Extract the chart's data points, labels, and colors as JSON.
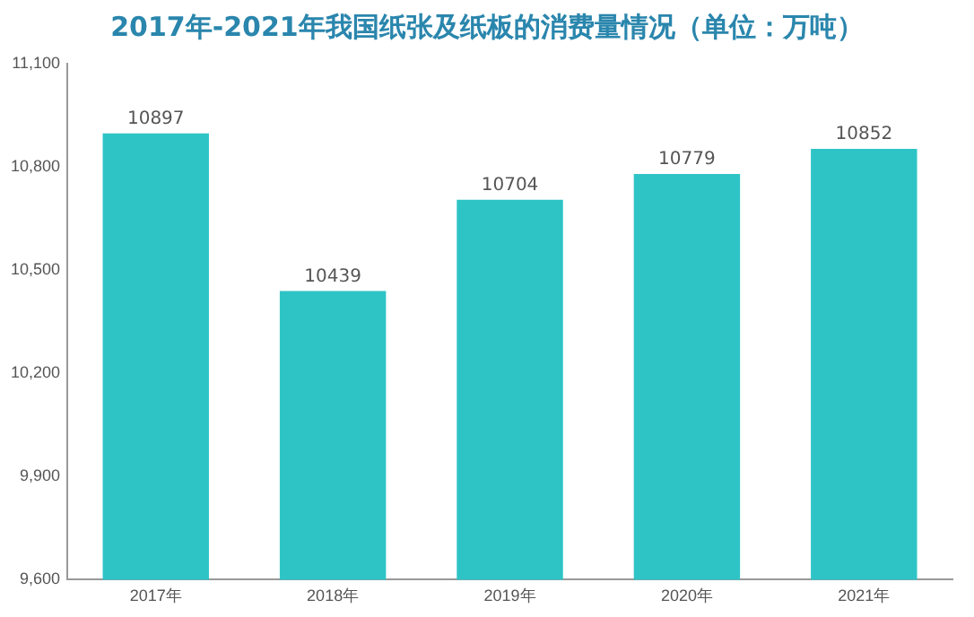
{
  "chart_data": {
    "type": "bar",
    "title": "2017年-2021年我国纸张及纸板的消费量情况（单位：万吨）",
    "categories": [
      "2017年",
      "2018年",
      "2019年",
      "2020年",
      "2021年"
    ],
    "values": [
      10897,
      10439,
      10704,
      10779,
      10852
    ],
    "color": "#2ec4c6",
    "ylim": [
      9600,
      11100
    ],
    "yticks": [
      {
        "value": 9600,
        "label": "9,600"
      },
      {
        "value": 9900,
        "label": "9,900"
      },
      {
        "value": 10200,
        "label": "10,200"
      },
      {
        "value": 10500,
        "label": "10,500"
      },
      {
        "value": 10800,
        "label": "10,800"
      },
      {
        "value": 11100,
        "label": "11,100"
      }
    ],
    "grid": false,
    "legend": false,
    "data_labels": true
  }
}
